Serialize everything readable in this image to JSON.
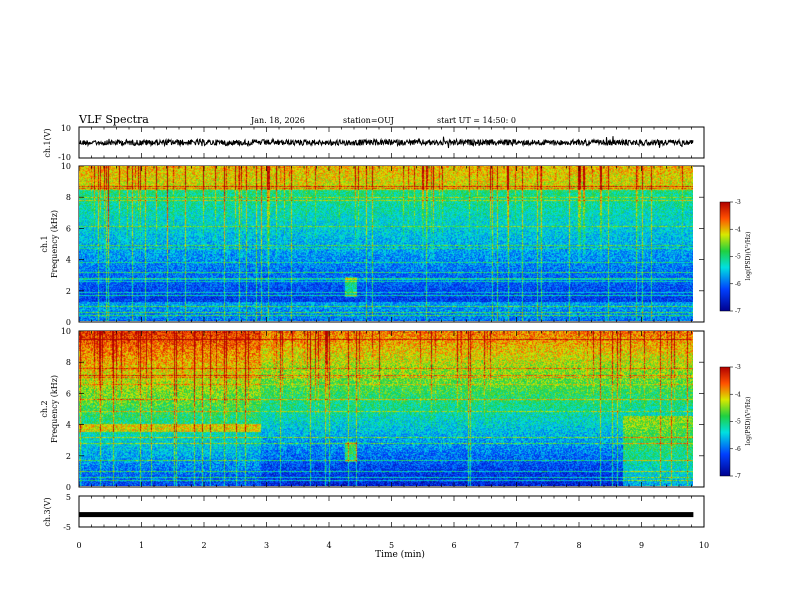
{
  "header": {
    "title": "VLF Spectra",
    "date": "Jan. 18, 2026",
    "station": "station=OUJ",
    "start": "start  UT =  14:50: 0"
  },
  "chart_data": [
    {
      "type": "line",
      "name": "waveform-ch1",
      "ylabel": "ch.1(V)",
      "ylim": [
        -10,
        10
      ],
      "ytick_labels": [
        "10",
        "-10"
      ],
      "x_unit": "min",
      "xlim": [
        0,
        10
      ],
      "description_values": {
        "mean": 0,
        "amplitude": 1.5
      }
    },
    {
      "type": "heatmap",
      "name": "spectrogram-ch1",
      "ylabel": "ch.1\nFrequency (kHz)",
      "ylabel_top": "ch.1",
      "ylabel_bottom": "Frequency (kHz)",
      "yticks": [
        0,
        2,
        4,
        6,
        8,
        10
      ],
      "ytick_labels": [
        "0",
        "2",
        "4",
        "6",
        "8",
        "10"
      ],
      "ylim": [
        0,
        10
      ],
      "xlim": [
        0,
        9.83
      ],
      "colorbar": {
        "label": "log(PSD)(V²/Hz)",
        "ticks": [
          -3,
          -4,
          -5,
          -6,
          -7
        ],
        "tick_labels": [
          "-3",
          "-4",
          "-5",
          "-6",
          "-7"
        ],
        "range": [
          -7,
          -3
        ]
      }
    },
    {
      "type": "heatmap",
      "name": "spectrogram-ch2",
      "ylabel": "ch.2\nFrequency (kHz)",
      "ylabel_top": "ch.2",
      "ylabel_bottom": "Frequency (kHz)",
      "yticks": [
        0,
        2,
        4,
        6,
        8,
        10
      ],
      "ytick_labels": [
        "0",
        "2",
        "4",
        "6",
        "8",
        "10"
      ],
      "ylim": [
        0,
        10
      ],
      "xlim": [
        0,
        9.83
      ],
      "colorbar": {
        "label": "log(PSD)(V²/Hz)",
        "ticks": [
          -3,
          -4,
          -5,
          -6,
          -7
        ],
        "tick_labels": [
          "-3",
          "-4",
          "-5",
          "-6",
          "-7"
        ],
        "range": [
          -7,
          -3
        ]
      }
    },
    {
      "type": "line",
      "name": "waveform-ch3",
      "ylabel": "ch.3(V)",
      "ylim": [
        -5,
        5
      ],
      "ytick_labels": [
        "5",
        "-5"
      ],
      "xlim": [
        0,
        10
      ],
      "description_values": {
        "mean": -1,
        "amplitude": 0.3
      }
    }
  ],
  "xaxis": {
    "label": "Time (min)",
    "ticks": [
      0,
      1,
      2,
      3,
      4,
      5,
      6,
      7,
      8,
      9,
      10
    ],
    "tick_labels": [
      "0",
      "1",
      "2",
      "3",
      "4",
      "5",
      "6",
      "7",
      "8",
      "9",
      "10"
    ]
  }
}
